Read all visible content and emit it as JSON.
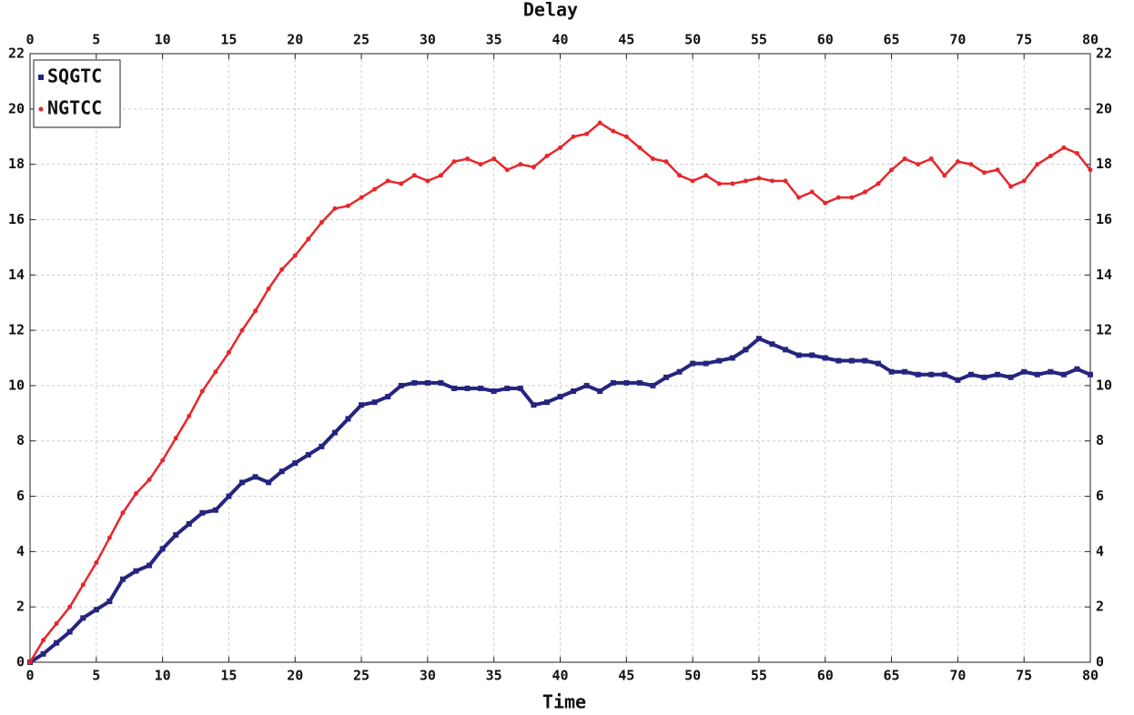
{
  "chart_data": {
    "type": "line",
    "xlabel": "Time",
    "x2label": "Delay",
    "x": [
      0,
      1,
      2,
      3,
      4,
      5,
      6,
      7,
      8,
      9,
      10,
      11,
      12,
      13,
      14,
      15,
      16,
      17,
      18,
      19,
      20,
      21,
      22,
      23,
      24,
      25,
      26,
      27,
      28,
      29,
      30,
      31,
      32,
      33,
      34,
      35,
      36,
      37,
      38,
      39,
      40,
      41,
      42,
      43,
      44,
      45,
      46,
      47,
      48,
      49,
      50,
      51,
      52,
      53,
      54,
      55,
      56,
      57,
      58,
      59,
      60,
      61,
      62,
      63,
      64,
      65,
      66,
      67,
      68,
      69,
      70,
      71,
      72,
      73,
      74,
      75,
      76,
      77,
      78,
      79,
      80
    ],
    "series": [
      {
        "name": "SQGTC",
        "color": "#25257f",
        "marker": "square",
        "values": [
          0,
          0.3,
          0.7,
          1.1,
          1.6,
          1.9,
          2.2,
          3.0,
          3.3,
          3.5,
          4.1,
          4.6,
          5.0,
          5.4,
          5.5,
          6.0,
          6.5,
          6.7,
          6.5,
          6.9,
          7.2,
          7.5,
          7.8,
          8.3,
          8.8,
          9.3,
          9.4,
          9.6,
          10.0,
          10.1,
          10.1,
          10.1,
          9.9,
          9.9,
          9.9,
          9.8,
          9.9,
          9.9,
          9.3,
          9.4,
          9.6,
          9.8,
          10.0,
          9.8,
          10.1,
          10.1,
          10.1,
          10.0,
          10.3,
          10.5,
          10.8,
          10.8,
          10.9,
          11.0,
          11.3,
          11.7,
          11.5,
          11.3,
          11.1,
          11.1,
          11.0,
          10.9,
          10.9,
          10.9,
          10.8,
          10.5,
          10.5,
          10.4,
          10.4,
          10.4,
          10.2,
          10.4,
          10.3,
          10.4,
          10.3,
          10.5,
          10.4,
          10.5,
          10.4,
          10.6,
          10.4
        ]
      },
      {
        "name": "NGTCC",
        "color": "#e8262b",
        "marker": "dot",
        "values": [
          0,
          0.8,
          1.4,
          2.0,
          2.8,
          3.6,
          4.5,
          5.4,
          6.1,
          6.6,
          7.3,
          8.1,
          8.9,
          9.8,
          10.5,
          11.2,
          12.0,
          12.7,
          13.5,
          14.2,
          14.7,
          15.3,
          15.9,
          16.4,
          16.5,
          16.8,
          17.1,
          17.4,
          17.3,
          17.6,
          17.4,
          17.6,
          18.1,
          18.2,
          18.0,
          18.2,
          17.8,
          18.0,
          17.9,
          18.3,
          18.6,
          19.0,
          19.1,
          19.5,
          19.2,
          19.0,
          18.6,
          18.2,
          18.1,
          17.6,
          17.4,
          17.6,
          17.3,
          17.3,
          17.4,
          17.5,
          17.4,
          17.4,
          16.8,
          17.0,
          16.6,
          16.8,
          16.8,
          17.0,
          17.3,
          17.8,
          18.2,
          18.0,
          18.2,
          17.6,
          18.1,
          18.0,
          17.7,
          17.8,
          17.2,
          17.4,
          18.0,
          18.3,
          18.6,
          18.4,
          17.8
        ]
      }
    ],
    "xlim": [
      0,
      80
    ],
    "xticks": [
      0,
      5,
      10,
      15,
      20,
      25,
      30,
      35,
      40,
      45,
      50,
      55,
      60,
      65,
      70,
      75,
      80
    ],
    "x2lim": [
      0,
      80
    ],
    "x2ticks": [
      0,
      5,
      10,
      15,
      20,
      25,
      30,
      35,
      40,
      45,
      50,
      55,
      60,
      65,
      70,
      75,
      80
    ],
    "ylim": [
      0,
      22
    ],
    "yticks": [
      0,
      2,
      4,
      6,
      8,
      10,
      12,
      14,
      16,
      18,
      20,
      22
    ],
    "y2lim": [
      0,
      22
    ],
    "y2ticks": [
      0,
      2,
      4,
      6,
      8,
      10,
      12,
      14,
      16,
      18,
      20,
      22
    ],
    "grid": true,
    "legend": "upper left"
  }
}
